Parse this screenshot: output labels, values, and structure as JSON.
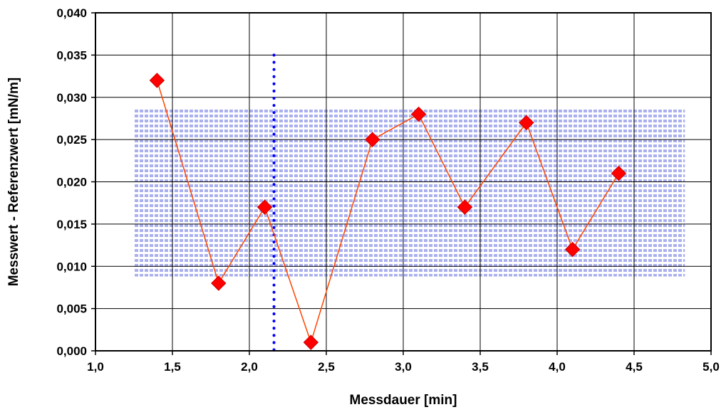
{
  "chart_data": {
    "type": "scatter",
    "xlabel": "Messdauer [min]",
    "ylabel": "Messwert - Referenzwert  [mN/m]",
    "xlim": [
      1.0,
      5.0
    ],
    "ylim": [
      0.0,
      0.04
    ],
    "x_ticks": [
      "1,0",
      "1,5",
      "2,0",
      "2,5",
      "3,0",
      "3,5",
      "4,0",
      "4,5",
      "5,0"
    ],
    "y_ticks": [
      "0,000",
      "0,005",
      "0,010",
      "0,015",
      "0,020",
      "0,025",
      "0,030",
      "0,035",
      "0,040"
    ],
    "grid": true,
    "series": [
      {
        "x": [
          1.4,
          1.8,
          2.1,
          2.4,
          2.8,
          3.1,
          3.4,
          3.8,
          4.1,
          4.4
        ],
        "y": [
          0.032,
          0.008,
          0.017,
          0.001,
          0.025,
          0.028,
          0.017,
          0.027,
          0.012,
          0.021
        ],
        "marker": "diamond",
        "line": true,
        "color": "#ff0000",
        "line_color": "#ff4500"
      }
    ],
    "shaded_band": {
      "x_range": [
        1.25,
        4.83
      ],
      "y_range": [
        0.0088,
        0.0288
      ],
      "color": "#aab0ee"
    },
    "vertical_line": {
      "x": 2.16,
      "y_range": [
        0.0,
        0.035
      ],
      "color": "#0000ff",
      "style": "dotted"
    }
  }
}
